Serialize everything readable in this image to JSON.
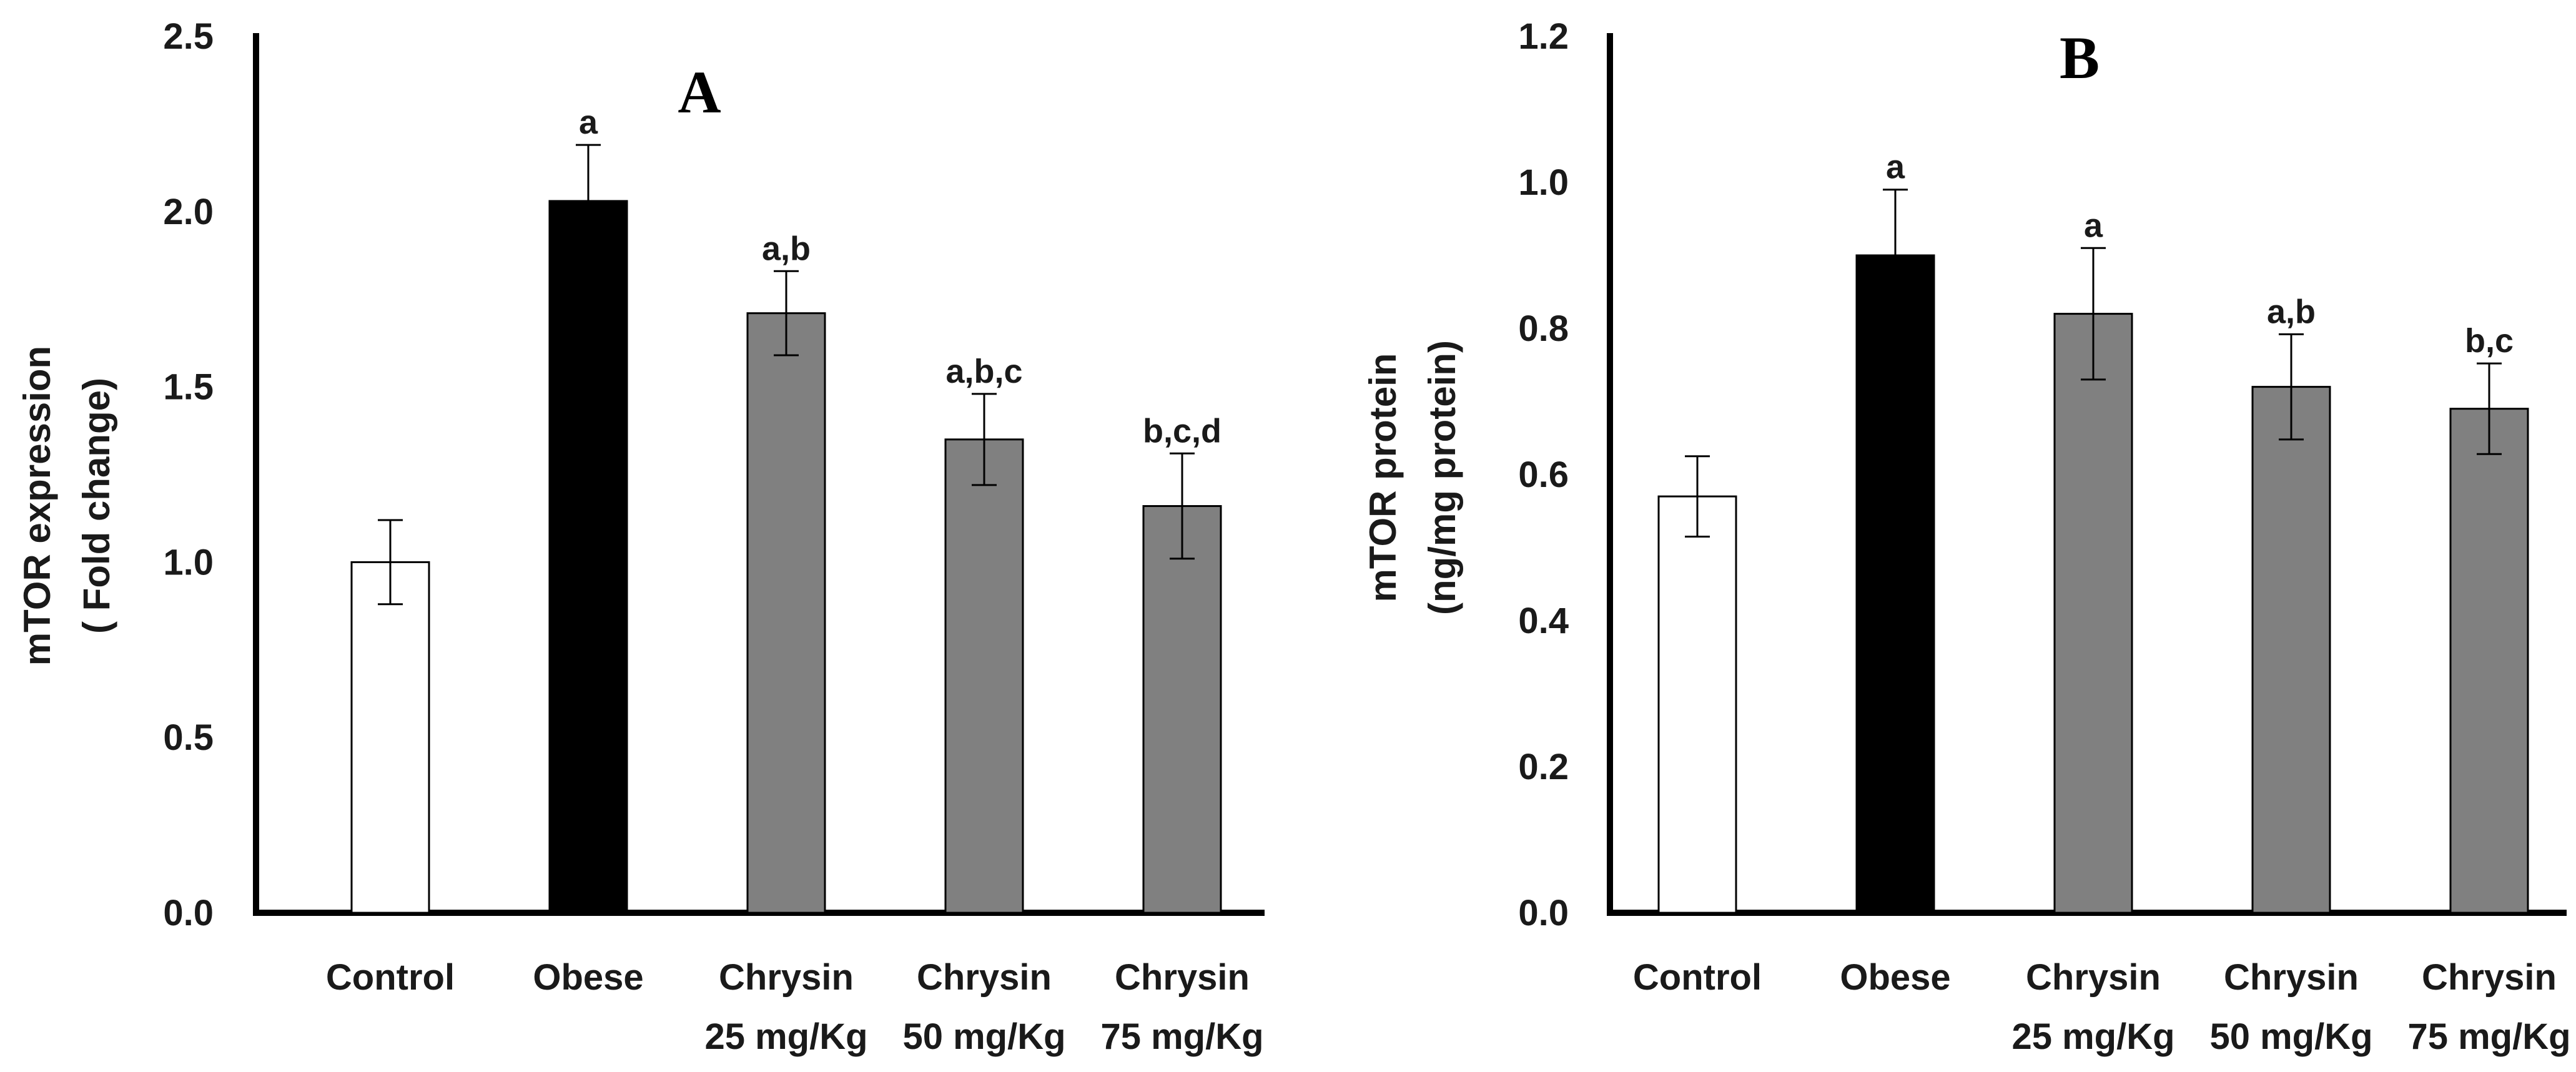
{
  "chart_data": [
    {
      "type": "bar",
      "panel_label": "A",
      "title": "",
      "xlabel": "",
      "ylabel_lines": [
        "mTOR  expression",
        "( Fold change)"
      ],
      "ylim": [
        0,
        2.5
      ],
      "yticks": [
        0.0,
        0.5,
        1.0,
        1.5,
        2.0,
        2.5
      ],
      "ytick_labels": [
        "0.0",
        "0.5",
        "1.0",
        "1.5",
        "2.0",
        "2.5"
      ],
      "grid": false,
      "categories": [
        {
          "line1": "Control",
          "line2": ""
        },
        {
          "line1": "Obese",
          "line2": ""
        },
        {
          "line1": "Chrysin",
          "line2": "25 mg/Kg"
        },
        {
          "line1": "Chrysin",
          "line2": "50 mg/Kg"
        },
        {
          "line1": "Chrysin",
          "line2": "75 mg/Kg"
        }
      ],
      "values": [
        1.0,
        2.03,
        1.71,
        1.35,
        1.16
      ],
      "errors": [
        0.12,
        0.16,
        0.12,
        0.13,
        0.15
      ],
      "significance": [
        "",
        "a",
        "a,b",
        "a,b,c",
        "b,c,d"
      ],
      "colors": [
        "#ffffff",
        "#000000",
        "#808080",
        "#808080",
        "#808080"
      ]
    },
    {
      "type": "bar",
      "panel_label": "B",
      "title": "",
      "xlabel": "",
      "ylabel_lines": [
        "mTOR protein",
        "(ng/mg protein)"
      ],
      "ylim": [
        0,
        1.2
      ],
      "yticks": [
        0.0,
        0.2,
        0.4,
        0.6,
        0.8,
        1.0,
        1.2
      ],
      "ytick_labels": [
        "0.0",
        "0.2",
        "0.4",
        "0.6",
        "0.8",
        "1.0",
        "1.2"
      ],
      "grid": false,
      "categories": [
        {
          "line1": "Control",
          "line2": ""
        },
        {
          "line1": "Obese",
          "line2": ""
        },
        {
          "line1": "Chrysin",
          "line2": "25 mg/Kg"
        },
        {
          "line1": "Chrysin",
          "line2": "50 mg/Kg"
        },
        {
          "line1": "Chrysin",
          "line2": "75 mg/Kg"
        }
      ],
      "values": [
        0.57,
        0.9,
        0.82,
        0.72,
        0.69
      ],
      "errors": [
        0.055,
        0.09,
        0.09,
        0.072,
        0.062
      ],
      "significance": [
        "",
        "a",
        "a",
        "a,b",
        "b,c"
      ],
      "colors": [
        "#ffffff",
        "#000000",
        "#808080",
        "#808080",
        "#808080"
      ]
    }
  ]
}
